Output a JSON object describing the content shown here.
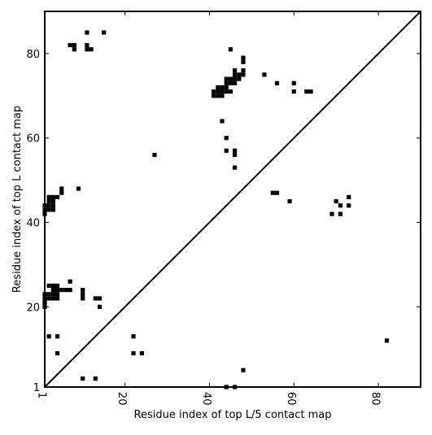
{
  "chart_data": {
    "type": "heatmap",
    "title": "",
    "xlabel": "Residue index of top L/5 contact map",
    "ylabel": "Residue index of top L contact map",
    "xlim": [
      1,
      90
    ],
    "ylim": [
      1,
      90
    ],
    "xticks": [
      1,
      20,
      40,
      60,
      80
    ],
    "yticks": [
      1,
      20,
      40,
      60,
      80
    ],
    "diagonal": true,
    "grid": false,
    "colors": {
      "contact": "#000000",
      "background": "#ffffff",
      "axis": "#000000"
    },
    "upper_triangle_contacts": [
      [
        7,
        82
      ],
      [
        8,
        82
      ],
      [
        8,
        81
      ],
      [
        11,
        85
      ],
      [
        11,
        82
      ],
      [
        11,
        81
      ],
      [
        12,
        81
      ],
      [
        15,
        85
      ],
      [
        27,
        56
      ],
      [
        41,
        70
      ],
      [
        42,
        70
      ],
      [
        43,
        70
      ],
      [
        41,
        71
      ],
      [
        42,
        71
      ],
      [
        43,
        71
      ],
      [
        42,
        72
      ],
      [
        43,
        72
      ],
      [
        44,
        72
      ],
      [
        44,
        73
      ],
      [
        45,
        73
      ],
      [
        44,
        74
      ],
      [
        45,
        74
      ],
      [
        46,
        74
      ],
      [
        47,
        74
      ],
      [
        46,
        75
      ],
      [
        47,
        75
      ],
      [
        48,
        75
      ],
      [
        46,
        76
      ],
      [
        48,
        76
      ],
      [
        44,
        71
      ],
      [
        45,
        71
      ],
      [
        46,
        73
      ],
      [
        43,
        64
      ],
      [
        45,
        81
      ],
      [
        44,
        60
      ],
      [
        44,
        57
      ],
      [
        46,
        57
      ],
      [
        46,
        56
      ],
      [
        46,
        53
      ],
      [
        48,
        78
      ],
      [
        48,
        79
      ],
      [
        53,
        75
      ],
      [
        56,
        73
      ],
      [
        60,
        73
      ],
      [
        60,
        71
      ],
      [
        63,
        71
      ],
      [
        64,
        71
      ],
      [
        1,
        42
      ],
      [
        1,
        43
      ],
      [
        1,
        44
      ],
      [
        2,
        43
      ],
      [
        2,
        44
      ],
      [
        2,
        45
      ],
      [
        2,
        46
      ],
      [
        3,
        43
      ],
      [
        3,
        44
      ],
      [
        3,
        45
      ],
      [
        3,
        46
      ],
      [
        4,
        46
      ],
      [
        5,
        47
      ],
      [
        5,
        48
      ],
      [
        9,
        48
      ],
      [
        1,
        20
      ],
      [
        1,
        21
      ],
      [
        1,
        22
      ],
      [
        1,
        23
      ],
      [
        2,
        22
      ],
      [
        2,
        23
      ],
      [
        3,
        22
      ],
      [
        3,
        23
      ],
      [
        3,
        24
      ],
      [
        3,
        25
      ],
      [
        4,
        22
      ],
      [
        4,
        23
      ],
      [
        4,
        24
      ],
      [
        4,
        25
      ],
      [
        5,
        24
      ],
      [
        6,
        24
      ],
      [
        7,
        24
      ],
      [
        7,
        26
      ],
      [
        10,
        23
      ],
      [
        10,
        24
      ],
      [
        10,
        22
      ],
      [
        13,
        22
      ],
      [
        14,
        22
      ],
      [
        14,
        20
      ],
      [
        2,
        25
      ],
      [
        55,
        47
      ],
      [
        56,
        47
      ],
      [
        59,
        45
      ],
      [
        69,
        42
      ],
      [
        70,
        45
      ],
      [
        71,
        44
      ],
      [
        71,
        42
      ],
      [
        73,
        46
      ],
      [
        73,
        44
      ],
      [
        2,
        13
      ],
      [
        4,
        13
      ],
      [
        4,
        9
      ],
      [
        22,
        13
      ],
      [
        22,
        9
      ],
      [
        24,
        9
      ],
      [
        10,
        3
      ],
      [
        13,
        3
      ],
      [
        48,
        5
      ],
      [
        44,
        1
      ],
      [
        46,
        1
      ],
      [
        82,
        12
      ]
    ]
  },
  "axes": {
    "x_ticks": [
      "1",
      "20",
      "40",
      "60",
      "80"
    ],
    "y_ticks": [
      "1",
      "20",
      "40",
      "60",
      "80"
    ]
  }
}
